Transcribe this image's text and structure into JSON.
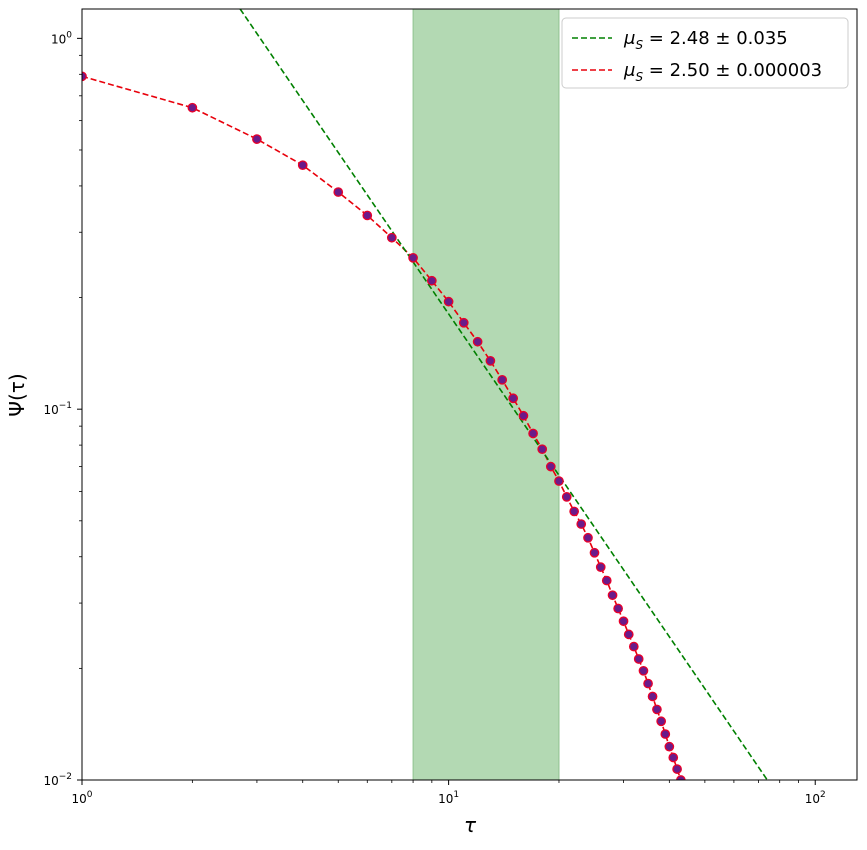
{
  "chart_data": {
    "type": "scatter",
    "title": "",
    "xlabel": "τ",
    "ylabel": "Ψ(τ)",
    "xscale": "log",
    "yscale": "log",
    "xlim": [
      1,
      130
    ],
    "ylim": [
      0.01,
      1.2
    ],
    "x_ticks": [
      {
        "value": 1,
        "base": "10",
        "exp": "0"
      },
      {
        "value": 10,
        "base": "10",
        "exp": "1"
      },
      {
        "value": 100,
        "base": "10",
        "exp": "2"
      }
    ],
    "y_ticks": [
      {
        "value": 0.01,
        "base": "10",
        "exp": "−2"
      },
      {
        "value": 0.1,
        "base": "10",
        "exp": "−1"
      },
      {
        "value": 1,
        "base": "10",
        "exp": "0"
      }
    ],
    "grid": false,
    "legend_position": "top-right",
    "shaded_region": {
      "x_start": 8,
      "x_end": 20,
      "color": "#b3d9b3"
    },
    "series": [
      {
        "kind": "points",
        "marker_fill": "#6a1b8a",
        "marker_edge": "#e8002a",
        "x": [
          1,
          2,
          3,
          4,
          5,
          6,
          7,
          8,
          9,
          10,
          11,
          12,
          13,
          14,
          15,
          16,
          17,
          18,
          19,
          20,
          21,
          22,
          23,
          24,
          25,
          26,
          27,
          28,
          29,
          30,
          31,
          32,
          33,
          34,
          35,
          36,
          37,
          38,
          39,
          40,
          41,
          42,
          43
        ],
        "y": [
          0.79,
          0.65,
          0.535,
          0.455,
          0.385,
          0.333,
          0.29,
          0.256,
          0.222,
          0.195,
          0.171,
          0.152,
          0.135,
          0.12,
          0.107,
          0.096,
          0.086,
          0.078,
          0.07,
          0.064,
          0.058,
          0.053,
          0.049,
          0.045,
          0.041,
          0.0375,
          0.0345,
          0.0315,
          0.029,
          0.0268,
          0.0247,
          0.0229,
          0.0212,
          0.0197,
          0.0182,
          0.0168,
          0.0155,
          0.0144,
          0.0133,
          0.0123,
          0.0115,
          0.0107,
          0.01
        ]
      },
      {
        "kind": "fit",
        "color": "#e8000b",
        "label_prefix": "μ",
        "label_sub": "S",
        "label_rest": " = 2.50 ± 0.000003",
        "x": [
          1,
          2,
          3,
          4,
          5,
          6,
          7,
          8,
          9,
          10,
          11,
          12,
          13,
          14,
          15,
          16,
          17,
          18,
          19,
          20,
          21,
          22,
          23,
          24,
          25,
          26,
          27,
          28,
          29,
          30,
          31,
          32,
          33,
          34,
          35,
          36,
          37,
          38,
          39,
          40,
          41,
          42,
          43
        ],
        "y": [
          0.79,
          0.65,
          0.535,
          0.455,
          0.385,
          0.333,
          0.29,
          0.256,
          0.222,
          0.195,
          0.171,
          0.152,
          0.135,
          0.12,
          0.107,
          0.096,
          0.086,
          0.078,
          0.07,
          0.064,
          0.058,
          0.053,
          0.049,
          0.045,
          0.041,
          0.0375,
          0.0345,
          0.0315,
          0.029,
          0.0268,
          0.0247,
          0.0229,
          0.0212,
          0.0197,
          0.0182,
          0.0168,
          0.0155,
          0.0144,
          0.0133,
          0.0123,
          0.0115,
          0.0107,
          0.01
        ]
      },
      {
        "kind": "fit",
        "color": "#008000",
        "label_prefix": "μ",
        "label_sub": "S",
        "label_rest": " = 2.48 ± 0.035",
        "x": [
          2.7,
          74
        ],
        "y": [
          1.2,
          0.01
        ]
      }
    ],
    "legend_order": [
      2,
      1
    ]
  }
}
